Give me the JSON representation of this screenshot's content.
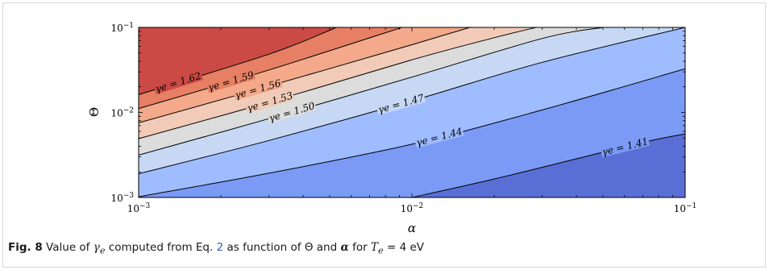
{
  "chart_data": {
    "type": "contour",
    "xlabel": "α",
    "ylabel": "Θ",
    "xscale": "log",
    "yscale": "log",
    "xlim": [
      0.001,
      0.1
    ],
    "ylim": [
      0.001,
      0.1
    ],
    "x_ticks": [
      {
        "value": 0.001,
        "base": "10",
        "exp": "−3"
      },
      {
        "value": 0.01,
        "base": "10",
        "exp": "−2"
      },
      {
        "value": 0.1,
        "base": "10",
        "exp": "−1"
      }
    ],
    "y_ticks": [
      {
        "value": 0.001,
        "base": "10",
        "exp": "−3"
      },
      {
        "value": 0.01,
        "base": "10",
        "exp": "−2"
      },
      {
        "value": 0.1,
        "base": "10",
        "exp": "−1"
      }
    ],
    "levels": [
      {
        "label": "γe = 1.41",
        "value": 1.41,
        "line": [
          [
            0.01,
            0.001
          ],
          [
            0.02,
            0.00165
          ],
          [
            0.04,
            0.00285
          ],
          [
            0.07,
            0.00445
          ],
          [
            0.1,
            0.0056
          ]
        ]
      },
      {
        "label": "γe = 1.44",
        "value": 1.44,
        "line": [
          [
            0.001,
            0.00102
          ],
          [
            0.003,
            0.00193
          ],
          [
            0.01,
            0.00423
          ],
          [
            0.03,
            0.0107
          ],
          [
            0.1,
            0.0326
          ]
        ]
      },
      {
        "label": "γe = 1.47",
        "value": 1.47,
        "line": [
          [
            0.001,
            0.0019
          ],
          [
            0.003,
            0.00468
          ],
          [
            0.01,
            0.0137
          ],
          [
            0.03,
            0.0389
          ],
          [
            0.1,
            0.1
          ]
        ]
      },
      {
        "label": "γe = 1.50",
        "value": 1.5,
        "line": [
          [
            0.001,
            0.00315
          ],
          [
            0.003,
            0.00845
          ],
          [
            0.01,
            0.026
          ],
          [
            0.03,
            0.0742
          ],
          [
            0.05,
            0.1
          ]
        ]
      },
      {
        "label": "γe = 1.53",
        "value": 1.53,
        "line": [
          [
            0.001,
            0.00492
          ],
          [
            0.003,
            0.0132
          ],
          [
            0.01,
            0.0416
          ],
          [
            0.02,
            0.0756
          ],
          [
            0.0285,
            0.1
          ]
        ]
      },
      {
        "label": "γe = 1.56",
        "value": 1.56,
        "line": [
          [
            0.001,
            0.00755
          ],
          [
            0.003,
            0.0204
          ],
          [
            0.01,
            0.0626
          ],
          [
            0.0163,
            0.1
          ]
        ]
      },
      {
        "label": "γe = 1.59",
        "value": 1.59,
        "line": [
          [
            0.001,
            0.0111
          ],
          [
            0.003,
            0.0316
          ],
          [
            0.0092,
            0.1
          ]
        ]
      },
      {
        "label": "γe = 1.62",
        "value": 1.62,
        "line": [
          [
            0.001,
            0.0162
          ],
          [
            0.003,
            0.0484
          ],
          [
            0.0053,
            0.1
          ]
        ]
      }
    ],
    "fill_colors": [
      "#5a6fd6",
      "#7b9af5",
      "#9fbcfe",
      "#c7d8f5",
      "#dcdcdc",
      "#f2cbb8",
      "#f3a98a",
      "#e67f63",
      "#cb4a45"
    ],
    "line_color": "#000000"
  },
  "caption": {
    "fig_label": "Fig. 8",
    "text_1": "Value of",
    "gamma_symbol": "γ",
    "gamma_sub": "e",
    "text_2": "computed from Eq.",
    "eq_ref": "2",
    "text_3": "as function of",
    "theta_symbol": "Θ",
    "text_4": "and",
    "alpha_symbol": "α",
    "text_5": "for",
    "t_symbol": "T",
    "t_sub": "e",
    "t_value": "= 4 eV"
  }
}
